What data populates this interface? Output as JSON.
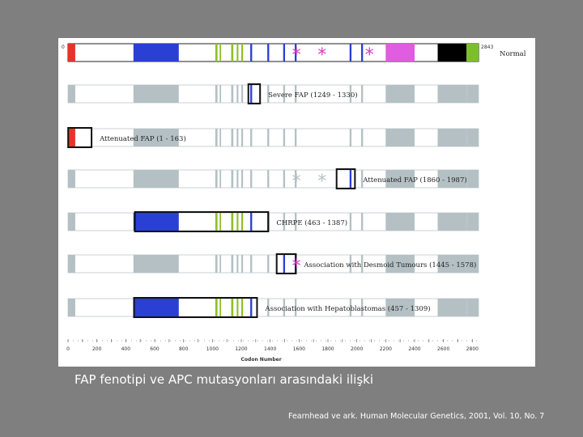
{
  "caption": "FAP fenotipi ve APC mutasyonları arasındaki ilişki",
  "citation": "Fearnhead ve ark. Human Molecular Genetics, 2001, Vol. 10, No. 7",
  "chart_data": {
    "type": "diagram",
    "xlabel": "Codon Number",
    "xlim": [
      0,
      2843
    ],
    "x_ticks": [
      0,
      200,
      400,
      600,
      800,
      1000,
      1200,
      1400,
      1600,
      1800,
      2000,
      2200,
      2400,
      2600,
      2800
    ],
    "gene_start_label": "0",
    "gene_end_label": "2843",
    "bars": [
      {
        "label": "Normal",
        "range": null
      },
      {
        "label": "Severe FAP (1249 - 1330)",
        "range": [
          1249,
          1330
        ]
      },
      {
        "label": "Attenuated FAP (1 - 163)",
        "range": [
          1,
          163
        ]
      },
      {
        "label": "Attenuated FAP (1860 - 1987)",
        "range": [
          1860,
          1987
        ]
      },
      {
        "label": "CHRPE (463 - 1387)",
        "range": [
          463,
          1387
        ]
      },
      {
        "label": "Association with Desmoid Tumours (1445 - 1578)",
        "range": [
          1445,
          1578
        ]
      },
      {
        "label": "Association with Hepatoblastomas (457 - 1309)",
        "range": [
          457,
          1309
        ]
      }
    ],
    "domains": [
      {
        "start": 0,
        "end": 50,
        "color": "#e8322a"
      },
      {
        "start": 453,
        "end": 767,
        "color": "#2a3fd4"
      },
      {
        "start": 1020,
        "end": 1035,
        "color": "#8fbf2a"
      },
      {
        "start": 1050,
        "end": 1060,
        "color": "#8fbf2a"
      },
      {
        "start": 1130,
        "end": 1145,
        "color": "#8fbf2a"
      },
      {
        "start": 1168,
        "end": 1180,
        "color": "#8fbf2a"
      },
      {
        "start": 1200,
        "end": 1212,
        "color": "#8fbf2a"
      },
      {
        "start": 1262,
        "end": 1275,
        "color": "#2a3fd4"
      },
      {
        "start": 1380,
        "end": 1393,
        "color": "#2a3fd4"
      },
      {
        "start": 1490,
        "end": 1503,
        "color": "#2a3fd4"
      },
      {
        "start": 1570,
        "end": 1583,
        "color": "#2a3fd4"
      },
      {
        "start": 1950,
        "end": 1963,
        "color": "#2a3fd4"
      },
      {
        "start": 2030,
        "end": 2043,
        "color": "#2a3fd4"
      },
      {
        "start": 2200,
        "end": 2400,
        "color": "#e05ce0"
      },
      {
        "start": 2560,
        "end": 2760,
        "color": "#000000"
      },
      {
        "start": 2760,
        "end": 2843,
        "color": "#7cbf2a"
      }
    ],
    "stars": [
      {
        "codon": 1585,
        "rows": [
          0,
          3
        ]
      },
      {
        "codon": 1762,
        "rows": [
          0,
          3
        ]
      },
      {
        "codon": 2090,
        "rows": [
          0
        ]
      },
      {
        "codon": 1585,
        "rows": [
          5
        ]
      }
    ]
  }
}
